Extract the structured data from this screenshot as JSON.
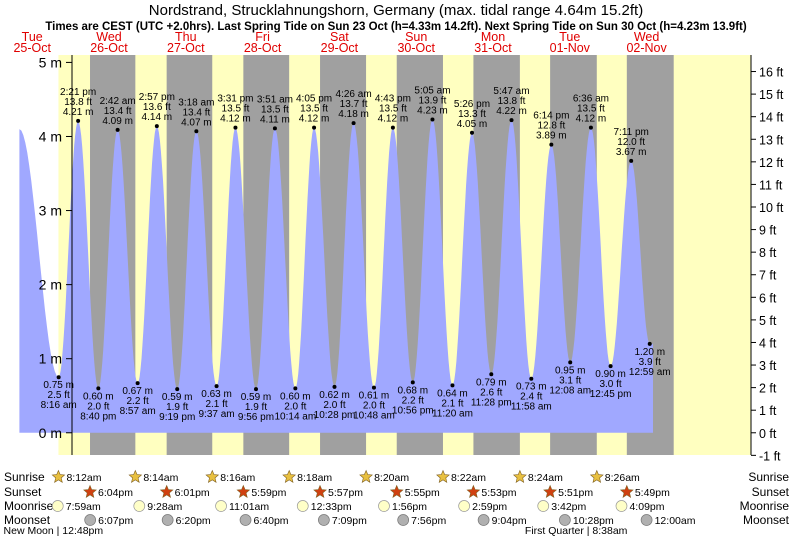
{
  "header": {
    "title": "Nordstrand, Strucklahnungshorn, Germany (max. tidal range 4.64m 15.2ft)",
    "subtitle": "Times are CEST (UTC +2.0hrs). Last Spring Tide on Sun 23 Oct (h=4.33m 14.2ft). Next Spring Tide on Sun 30 Oct (h=4.23m 13.9ft)"
  },
  "days": [
    {
      "dow": "Tue",
      "date": "25-Oct",
      "weekend": false
    },
    {
      "dow": "Wed",
      "date": "26-Oct",
      "weekend": false
    },
    {
      "dow": "Thu",
      "date": "27-Oct",
      "weekend": false
    },
    {
      "dow": "Fri",
      "date": "28-Oct",
      "weekend": false
    },
    {
      "dow": "Sat",
      "date": "29-Oct",
      "weekend": true
    },
    {
      "dow": "Sun",
      "date": "30-Oct",
      "weekend": true
    },
    {
      "dow": "Mon",
      "date": "31-Oct",
      "weekend": false
    },
    {
      "dow": "Tue",
      "date": "01-Nov",
      "weekend": false
    },
    {
      "dow": "Wed",
      "date": "02-Nov",
      "weekend": false
    }
  ],
  "chart_data": {
    "type": "area",
    "x_unit": "hours from Tue 25-Oct 00:00 CEST",
    "ylim_m": [
      -0.3,
      5.1
    ],
    "yticks_m": [
      0,
      1,
      2,
      3,
      4,
      5
    ],
    "yticks_ft": [
      -1,
      0,
      1,
      2,
      3,
      4,
      5,
      6,
      7,
      8,
      9,
      10,
      11,
      12,
      13,
      14,
      15,
      16
    ],
    "left_axis_label": "m",
    "right_axis_label": "ft",
    "day_shading": [
      {
        "sunrise": "08:12",
        "sunset": "18:04"
      },
      {
        "sunrise": "08:14",
        "sunset": "18:01"
      },
      {
        "sunrise": "08:16",
        "sunset": "17:59"
      },
      {
        "sunrise": "08:18",
        "sunset": "17:57"
      },
      {
        "sunrise": "08:20",
        "sunset": "17:55"
      },
      {
        "sunrise": "08:22",
        "sunset": "17:53"
      },
      {
        "sunrise": "08:24",
        "sunset": "17:51"
      },
      {
        "sunrise": "08:26",
        "sunset": "17:49"
      }
    ],
    "series_start": {
      "t": "Mon 24-Oct 20:00",
      "height_m": 4.1
    },
    "series_end": {
      "t": "Wed 02-Nov 02:00",
      "height_m": 1.2
    },
    "tides": [
      {
        "day": 0,
        "time": "8:16 am",
        "height_m": 0.75,
        "height_ft": "2.5 ft",
        "type": "low"
      },
      {
        "day": 0,
        "time": "2:21 pm",
        "height_m": 4.21,
        "height_ft": "13.8 ft",
        "type": "high"
      },
      {
        "day": 0,
        "time": "8:40 pm",
        "height_m": 0.6,
        "height_ft": "2.0 ft",
        "type": "low"
      },
      {
        "day": 1,
        "time": "2:42 am",
        "height_m": 4.09,
        "height_ft": "13.4 ft",
        "type": "high"
      },
      {
        "day": 1,
        "time": "8:57 am",
        "height_m": 0.67,
        "height_ft": "2.2 ft",
        "type": "low"
      },
      {
        "day": 1,
        "time": "2:57 pm",
        "height_m": 4.14,
        "height_ft": "13.6 ft",
        "type": "high"
      },
      {
        "day": 1,
        "time": "9:19 pm",
        "height_m": 0.59,
        "height_ft": "1.9 ft",
        "type": "low"
      },
      {
        "day": 2,
        "time": "3:18 am",
        "height_m": 4.07,
        "height_ft": "13.4 ft",
        "type": "high"
      },
      {
        "day": 2,
        "time": "9:37 am",
        "height_m": 0.63,
        "height_ft": "2.1 ft",
        "type": "low"
      },
      {
        "day": 2,
        "time": "3:31 pm",
        "height_m": 4.12,
        "height_ft": "13.5 ft",
        "type": "high"
      },
      {
        "day": 2,
        "time": "9:56 pm",
        "height_m": 0.59,
        "height_ft": "1.9 ft",
        "type": "low"
      },
      {
        "day": 3,
        "time": "3:51 am",
        "height_m": 4.11,
        "height_ft": "13.5 ft",
        "type": "high"
      },
      {
        "day": 3,
        "time": "10:14 am",
        "height_m": 0.6,
        "height_ft": "2.0 ft",
        "type": "low"
      },
      {
        "day": 3,
        "time": "4:05 pm",
        "height_m": 4.12,
        "height_ft": "13.5 ft",
        "type": "high"
      },
      {
        "day": 3,
        "time": "10:28 pm",
        "height_m": 0.62,
        "height_ft": "2.0 ft",
        "type": "low"
      },
      {
        "day": 4,
        "time": "4:26 am",
        "height_m": 4.18,
        "height_ft": "13.7 ft",
        "type": "high"
      },
      {
        "day": 4,
        "time": "10:48 am",
        "height_m": 0.61,
        "height_ft": "2.0 ft",
        "type": "low"
      },
      {
        "day": 4,
        "time": "4:43 pm",
        "height_m": 4.12,
        "height_ft": "13.5 ft",
        "type": "high"
      },
      {
        "day": 4,
        "time": "10:56 pm",
        "height_m": 0.68,
        "height_ft": "2.2 ft",
        "type": "low"
      },
      {
        "day": 5,
        "time": "5:05 am",
        "height_m": 4.23,
        "height_ft": "13.9 ft",
        "type": "high"
      },
      {
        "day": 5,
        "time": "11:20 am",
        "height_m": 0.64,
        "height_ft": "2.1 ft",
        "type": "low"
      },
      {
        "day": 5,
        "time": "5:26 pm",
        "height_m": 4.05,
        "height_ft": "13.3 ft",
        "type": "high"
      },
      {
        "day": 5,
        "time": "11:28 pm",
        "height_m": 0.79,
        "height_ft": "2.6 ft",
        "type": "low"
      },
      {
        "day": 6,
        "time": "5:47 am",
        "height_m": 4.22,
        "height_ft": "13.8 ft",
        "type": "high"
      },
      {
        "day": 6,
        "time": "11:58 am",
        "height_m": 0.73,
        "height_ft": "2.4 ft",
        "type": "low"
      },
      {
        "day": 6,
        "time": "6:14 pm",
        "height_m": 3.89,
        "height_ft": "12.8 ft",
        "type": "high"
      },
      {
        "day": 7,
        "time": "12:08 am",
        "height_m": 0.95,
        "height_ft": "3.1 ft",
        "type": "low"
      },
      {
        "day": 7,
        "time": "6:36 am",
        "height_m": 4.12,
        "height_ft": "13.5 ft",
        "type": "high"
      },
      {
        "day": 7,
        "time": "12:45 pm",
        "height_m": 0.9,
        "height_ft": "3.0 ft",
        "type": "low"
      },
      {
        "day": 7,
        "time": "7:11 pm",
        "height_m": 3.67,
        "height_ft": "12.0 ft",
        "type": "high"
      },
      {
        "day": 8,
        "time": "12:59 am",
        "height_m": 1.2,
        "height_ft": "3.9 ft",
        "type": "low"
      }
    ]
  },
  "astro": {
    "labels": {
      "sunrise": "Sunrise",
      "sunset": "Sunset",
      "moonrise": "Moonrise",
      "moonset": "Moonset"
    },
    "sunrise": [
      {
        "day": 0,
        "text": "8:12am"
      },
      {
        "day": 1,
        "text": "8:14am"
      },
      {
        "day": 2,
        "text": "8:16am"
      },
      {
        "day": 3,
        "text": "8:18am"
      },
      {
        "day": 4,
        "text": "8:20am"
      },
      {
        "day": 5,
        "text": "8:22am"
      },
      {
        "day": 6,
        "text": "8:24am"
      },
      {
        "day": 7,
        "text": "8:26am"
      }
    ],
    "sunset": [
      {
        "day": 0,
        "text": "6:04pm"
      },
      {
        "day": 1,
        "text": "6:01pm"
      },
      {
        "day": 2,
        "text": "5:59pm"
      },
      {
        "day": 3,
        "text": "5:57pm"
      },
      {
        "day": 4,
        "text": "5:55pm"
      },
      {
        "day": 5,
        "text": "5:53pm"
      },
      {
        "day": 6,
        "text": "5:51pm"
      },
      {
        "day": 7,
        "text": "5:49pm"
      }
    ],
    "moonrise": [
      {
        "day": 0,
        "time": "07:59",
        "text": "7:59am"
      },
      {
        "day": 1,
        "time": "09:28",
        "text": "9:28am"
      },
      {
        "day": 2,
        "time": "11:01",
        "text": "11:01am"
      },
      {
        "day": 3,
        "time": "12:33",
        "text": "12:33pm"
      },
      {
        "day": 4,
        "time": "13:56",
        "text": "1:56pm"
      },
      {
        "day": 5,
        "time": "14:59",
        "text": "2:59pm"
      },
      {
        "day": 6,
        "time": "15:42",
        "text": "3:42pm"
      },
      {
        "day": 7,
        "time": "16:09",
        "text": "4:09pm"
      }
    ],
    "moonset": [
      {
        "day": 0,
        "time": "18:07",
        "text": "6:07pm"
      },
      {
        "day": 1,
        "time": "18:20",
        "text": "6:20pm"
      },
      {
        "day": 2,
        "time": "18:40",
        "text": "6:40pm"
      },
      {
        "day": 3,
        "time": "19:09",
        "text": "7:09pm"
      },
      {
        "day": 4,
        "time": "19:56",
        "text": "7:56pm"
      },
      {
        "day": 5,
        "time": "21:04",
        "text": "9:04pm"
      },
      {
        "day": 6,
        "time": "22:28",
        "text": "10:28pm"
      },
      {
        "day": 8,
        "time": "00:00",
        "text": "12:00am"
      }
    ],
    "moon_phases": [
      {
        "day": 0,
        "time": "12:48",
        "text": "New Moon | 12:48pm",
        "anchor": "end"
      },
      {
        "day": 7,
        "time": "08:38",
        "text": "First Quarter | 8:38am",
        "anchor": "end"
      }
    ]
  },
  "colors": {
    "night": "#a0a0a0",
    "day": "#ffffc0",
    "water": "#a0a8ff",
    "title": "#000000",
    "day_label": "#e00000",
    "sun_rise": "#e8c040",
    "sun_set": "#d04010",
    "moon_rise": "#ffffc8",
    "moon_set": "#b0b0b0"
  }
}
